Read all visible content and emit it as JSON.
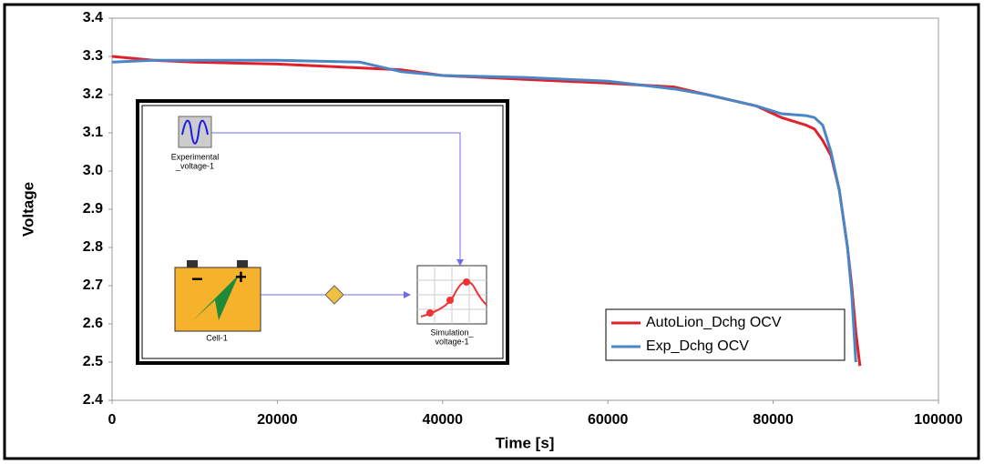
{
  "chart_data": {
    "type": "line",
    "x_label": "Time [s]",
    "y_label": "Voltage",
    "x": [
      0,
      5000,
      10000,
      20000,
      30000,
      35000,
      40000,
      50000,
      60000,
      68000,
      72000,
      78000,
      81000,
      84000,
      85000,
      86000,
      87000,
      88000,
      89000,
      89500,
      90000,
      90500
    ],
    "series": [
      {
        "name": "AutoLion_Dchg OCV",
        "color": "#e0202a",
        "values": [
          3.3,
          3.29,
          3.285,
          3.28,
          3.27,
          3.265,
          3.25,
          3.24,
          3.23,
          3.22,
          3.2,
          3.17,
          3.14,
          3.12,
          3.11,
          3.08,
          3.04,
          2.95,
          2.8,
          2.7,
          2.58,
          2.49
        ]
      },
      {
        "name": "Exp_Dchg OCV",
        "color": "#4a86c5",
        "values": [
          3.285,
          3.29,
          3.29,
          3.29,
          3.285,
          3.26,
          3.25,
          3.245,
          3.235,
          3.215,
          3.2,
          3.17,
          3.15,
          3.145,
          3.14,
          3.12,
          3.05,
          2.95,
          2.8,
          2.68,
          2.5,
          null
        ]
      }
    ],
    "xlim": [
      0,
      100000
    ],
    "xticks": [
      0,
      20000,
      40000,
      60000,
      80000,
      100000
    ],
    "ylim": [
      2.4,
      3.4
    ],
    "yticks": [
      2.4,
      2.5,
      2.6,
      2.7,
      2.8,
      2.9,
      {
        "value": 3,
        "label": "3.0"
      },
      3.1,
      3.2,
      3.3,
      3.4
    ],
    "grid": false,
    "legend": "lower right",
    "inset_labels": [
      "Experimental",
      "_voltage-1",
      "Cell-1",
      "Simulation_",
      "voltage-1"
    ]
  }
}
